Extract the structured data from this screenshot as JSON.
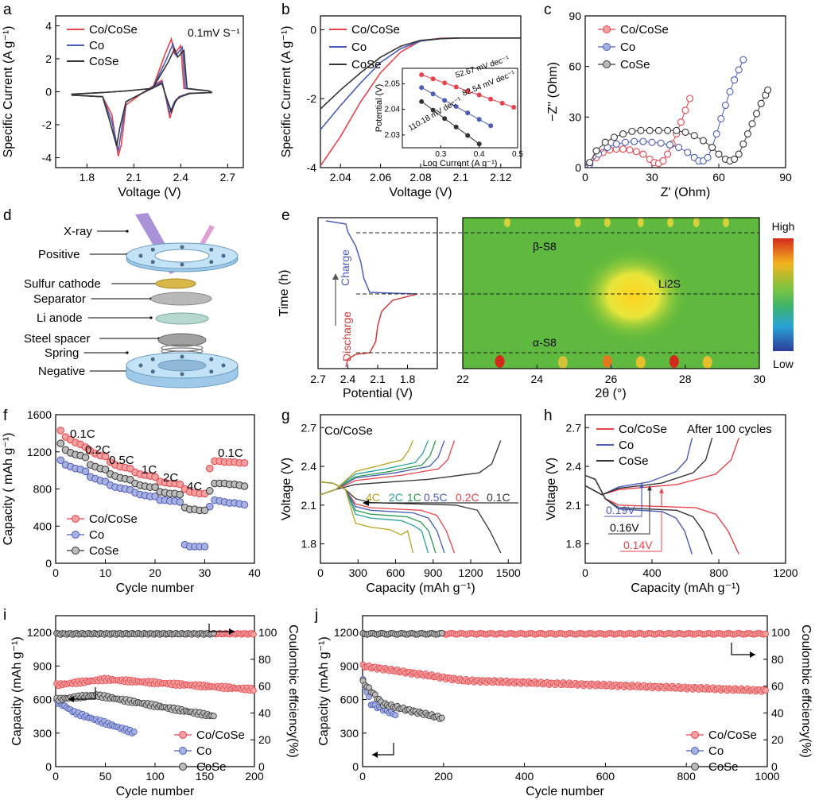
{
  "figure": {
    "panel_labels": [
      "a",
      "b",
      "c",
      "d",
      "e",
      "f",
      "g",
      "h",
      "i",
      "j"
    ],
    "colors": {
      "cocose": "#e8424a",
      "co": "#4a5bb8",
      "cose": "#333333",
      "cocose_fill": "#f4a0a0",
      "co_fill": "#a8b0e0",
      "cose_fill": "#bbbbbb"
    }
  },
  "chart_data": [
    {
      "panel": "a",
      "type": "line",
      "xlabel": "Voltage (V)",
      "ylabel": "Specific Current (A g⁻¹)",
      "xlim": [
        1.6,
        2.8
      ],
      "ylim": [
        -4.6,
        4.6
      ],
      "xticks": [
        1.8,
        2.1,
        2.4,
        2.7
      ],
      "yticks": [
        -4,
        -2,
        0,
        2,
        4
      ],
      "annotation": "0.1mV S⁻¹",
      "legend": [
        "Co/CoSe",
        "Co",
        "CoSe"
      ],
      "series": [
        {
          "name": "Co/CoSe",
          "x": [
            1.7,
            1.9,
            1.96,
            2.0,
            2.02,
            2.05,
            2.15,
            2.28,
            2.31,
            2.33,
            2.36,
            2.39,
            2.45,
            2.6,
            2.58,
            2.42,
            2.4,
            2.36,
            2.34,
            2.3,
            2.22,
            2.05,
            1.9,
            1.7
          ],
          "y": [
            -0.2,
            -0.3,
            -1.4,
            -3.9,
            -3.2,
            -0.8,
            -0.1,
            0.7,
            -0.6,
            -1.6,
            -0.7,
            -0.3,
            -0.1,
            -0.05,
            0.05,
            0.2,
            2.8,
            2.3,
            3.2,
            2.3,
            0.2,
            0.05,
            -0.05,
            -0.15
          ]
        },
        {
          "name": "Co",
          "x": [
            1.7,
            1.9,
            1.96,
            2.0,
            2.02,
            2.05,
            2.15,
            2.28,
            2.31,
            2.33,
            2.36,
            2.39,
            2.45,
            2.6,
            2.58,
            2.43,
            2.41,
            2.37,
            2.35,
            2.31,
            2.22,
            2.05,
            1.9,
            1.7
          ],
          "y": [
            -0.2,
            -0.3,
            -1.8,
            -3.6,
            -2.4,
            -0.6,
            -0.1,
            0.6,
            -0.5,
            -1.3,
            -0.6,
            -0.3,
            -0.1,
            -0.05,
            0.05,
            0.2,
            2.7,
            2.2,
            2.9,
            2.0,
            0.2,
            0.05,
            -0.05,
            -0.15
          ]
        },
        {
          "name": "CoSe",
          "x": [
            1.7,
            1.9,
            1.95,
            1.99,
            2.01,
            2.05,
            2.15,
            2.28,
            2.31,
            2.34,
            2.37,
            2.4,
            2.46,
            2.6,
            2.58,
            2.44,
            2.42,
            2.38,
            2.36,
            2.32,
            2.22,
            2.05,
            1.9,
            1.7
          ],
          "y": [
            -0.2,
            -0.3,
            -1.9,
            -3.3,
            -2.2,
            -0.6,
            -0.1,
            0.5,
            -0.4,
            -1.2,
            -0.5,
            -0.3,
            -0.1,
            -0.05,
            0.05,
            0.2,
            2.5,
            2.1,
            2.6,
            1.8,
            0.2,
            0.05,
            -0.05,
            -0.15
          ]
        }
      ]
    },
    {
      "panel": "b",
      "type": "line",
      "xlabel": "Voltage (V)",
      "ylabel": "Specific Current (A g⁻¹)",
      "xlim": [
        2.03,
        2.13
      ],
      "ylim": [
        -4.0,
        0.4
      ],
      "xticks": [
        2.04,
        2.06,
        2.08,
        2.1,
        2.12
      ],
      "yticks": [
        -4,
        -2,
        0
      ],
      "legend": [
        "Co/CoSe",
        "Co",
        "CoSe"
      ],
      "series": [
        {
          "name": "Co/CoSe",
          "x": [
            2.03,
            2.04,
            2.05,
            2.06,
            2.07,
            2.08,
            2.09,
            2.1,
            2.11,
            2.13
          ],
          "y": [
            -3.95,
            -3.1,
            -2.1,
            -1.25,
            -0.65,
            -0.32,
            -0.25,
            -0.24,
            -0.24,
            -0.24
          ]
        },
        {
          "name": "Co",
          "x": [
            2.03,
            2.04,
            2.05,
            2.06,
            2.07,
            2.08,
            2.09,
            2.1,
            2.11,
            2.13
          ],
          "y": [
            -2.9,
            -2.2,
            -1.55,
            -0.95,
            -0.55,
            -0.33,
            -0.26,
            -0.24,
            -0.24,
            -0.24
          ]
        },
        {
          "name": "CoSe",
          "x": [
            2.03,
            2.04,
            2.05,
            2.06,
            2.07,
            2.08,
            2.09,
            2.1,
            2.11,
            2.13
          ],
          "y": [
            -2.3,
            -1.75,
            -1.25,
            -0.8,
            -0.48,
            -0.31,
            -0.26,
            -0.24,
            -0.24,
            -0.24
          ]
        }
      ],
      "inset": {
        "xlabel": "Log Current (A g⁻¹)",
        "ylabel": "Potential (V)",
        "xlim": [
          0.2,
          0.5
        ],
        "ylim": [
          2.025,
          2.056
        ],
        "xticks": [
          0.3,
          0.4,
          0.5
        ],
        "yticks": [
          2.03,
          2.04,
          2.05
        ],
        "labels": [
          "52.67 mV dec⁻¹",
          "82.54 mV dec⁻¹",
          "110.18 mV dec⁻¹"
        ],
        "series": [
          {
            "name": "Co/CoSe",
            "x": [
              0.25,
              0.28,
              0.31,
              0.34,
              0.37,
              0.4,
              0.43,
              0.46,
              0.49
            ],
            "y": [
              2.0535,
              2.0519,
              2.0503,
              2.0487,
              2.0471,
              2.0456,
              2.044,
              2.0424,
              2.0408
            ]
          },
          {
            "name": "Co",
            "x": [
              0.25,
              0.28,
              0.31,
              0.34,
              0.37,
              0.4,
              0.43
            ],
            "y": [
              2.0485,
              2.046,
              2.0435,
              2.0411,
              2.0386,
              2.0361,
              2.0336
            ]
          },
          {
            "name": "CoSe",
            "x": [
              0.25,
              0.28,
              0.31,
              0.34,
              0.37,
              0.4
            ],
            "y": [
              2.043,
              2.0397,
              2.0364,
              2.0331,
              2.0298,
              2.0265
            ]
          }
        ]
      }
    },
    {
      "panel": "c",
      "type": "scatter",
      "xlabel": "Z' (Ohm)",
      "ylabel": "−Z'' (Ohm)",
      "xlim": [
        0,
        90
      ],
      "ylim": [
        0,
        90
      ],
      "xticks": [
        0,
        30,
        60,
        90
      ],
      "yticks": [
        0,
        30,
        60,
        90
      ],
      "legend": [
        "Co/CoSe",
        "Co",
        "CoSe"
      ],
      "series": [
        {
          "name": "Co/CoSe",
          "x": [
            2,
            5,
            8,
            11,
            14,
            17,
            20,
            23,
            26,
            29,
            31,
            33,
            35,
            37,
            39,
            41,
            43,
            45,
            47
          ],
          "y": [
            2,
            6,
            9,
            10.5,
            11,
            11,
            10.5,
            9.5,
            8,
            5,
            3,
            2.5,
            4,
            8,
            14,
            20,
            27,
            34,
            41
          ]
        },
        {
          "name": "Co",
          "x": [
            2,
            6,
            10,
            14,
            18,
            22,
            26,
            30,
            34,
            38,
            42,
            46,
            49,
            51,
            53,
            55,
            57,
            59,
            61,
            63,
            65,
            67,
            69,
            71
          ],
          "y": [
            2,
            8,
            12,
            14,
            15,
            15.5,
            15.5,
            15,
            14.5,
            13.5,
            12,
            9,
            6,
            4,
            4,
            6,
            12,
            20,
            29,
            37,
            45,
            52,
            58,
            64
          ]
        },
        {
          "name": "CoSe",
          "x": [
            2,
            5,
            9,
            13,
            17,
            21,
            25,
            29,
            33,
            37,
            41,
            45,
            49,
            53,
            57,
            60,
            63,
            65,
            67,
            69,
            71,
            73,
            75,
            77,
            79,
            81,
            82
          ],
          "y": [
            3,
            10,
            15,
            18,
            20,
            21.5,
            22,
            22,
            22,
            22,
            22,
            21,
            19,
            16,
            12,
            8,
            5,
            4,
            5,
            8,
            14,
            20,
            26,
            32,
            38,
            43,
            46
          ]
        }
      ]
    },
    {
      "panel": "e",
      "type": "heatmap",
      "left_xlabel": "Potential (V)",
      "left_ylabel": "Time (h)",
      "left_xticks": [
        2.7,
        2.4,
        2.1,
        1.8
      ],
      "left_xlim": [
        2.7,
        1.5
      ],
      "xlabel": "2θ (°)",
      "xlim": [
        22,
        30
      ],
      "xticks": [
        22,
        24,
        26,
        28,
        30
      ],
      "colorbar": [
        "High",
        "Low"
      ],
      "annotations": [
        "β-S8",
        "Li2S",
        "α-S8"
      ],
      "charge_label": "Charge",
      "discharge_label": "Discharge"
    },
    {
      "panel": "f",
      "type": "scatter",
      "xlabel": "Cycle number",
      "ylabel": "Capacity ( mAh g⁻¹)",
      "xlim": [
        0,
        40
      ],
      "ylim": [
        0,
        1600
      ],
      "xticks": [
        0,
        10,
        20,
        30,
        40
      ],
      "yticks": [
        0,
        400,
        800,
        1200,
        1600
      ],
      "rate_labels": [
        "0.1C",
        "0.2C",
        "0.5C",
        "1C",
        "2C",
        "4C",
        "0.1C"
      ],
      "legend": [
        "Co/CoSe",
        "Co",
        "CoSe"
      ],
      "series": [
        {
          "name": "Co/CoSe",
          "values": [
            1430,
            1360,
            1330,
            1300,
            1280,
            1250,
            1210,
            1180,
            1160,
            1150,
            1090,
            1060,
            1040,
            1030,
            1020,
            980,
            960,
            950,
            940,
            930,
            880,
            870,
            860,
            860,
            850,
            800,
            770,
            760,
            750,
            750,
            1020,
            1100,
            1100,
            1090,
            1090,
            1090,
            1080,
            1080
          ]
        },
        {
          "name": "Co",
          "values": [
            1110,
            1060,
            1040,
            1020,
            1010,
            990,
            930,
            910,
            890,
            880,
            840,
            820,
            810,
            800,
            790,
            760,
            740,
            730,
            720,
            720,
            680,
            680,
            670,
            670,
            660,
            200,
            180,
            180,
            180,
            180,
            610,
            680,
            670,
            660,
            650,
            650,
            640,
            630
          ]
        },
        {
          "name": "CoSe",
          "values": [
            1290,
            1220,
            1190,
            1170,
            1160,
            1140,
            1060,
            1040,
            1020,
            1010,
            960,
            940,
            920,
            910,
            900,
            860,
            840,
            830,
            820,
            820,
            770,
            760,
            750,
            750,
            740,
            600,
            580,
            580,
            570,
            570,
            780,
            860,
            860,
            860,
            850,
            850,
            840,
            830
          ]
        }
      ]
    },
    {
      "panel": "g",
      "type": "line",
      "xlabel": "Capacity (mAh g⁻¹)",
      "ylabel": "Voltage (V)",
      "xlim": [
        0,
        1600
      ],
      "ylim": [
        1.65,
        2.8
      ],
      "xticks": [
        0,
        300,
        600,
        900,
        1200,
        1500
      ],
      "yticks": [
        1.8,
        2.1,
        2.4,
        2.7
      ],
      "title": "Co/CoSe",
      "rate_labels": [
        "4C",
        "2C",
        "1C",
        "0.5C",
        "0.2C",
        "0.1C"
      ],
      "series": [
        {
          "name": "0.1C",
          "cap": 1440
        },
        {
          "name": "0.2C",
          "cap": 1070
        },
        {
          "name": "0.5C",
          "cap": 990
        },
        {
          "name": "1C",
          "cap": 920
        },
        {
          "name": "2C",
          "cap": 860
        },
        {
          "name": "4C",
          "cap": 740
        }
      ]
    },
    {
      "panel": "h",
      "type": "line",
      "xlabel": "Capacity (mAh g⁻¹)",
      "ylabel": "Voltage (V)",
      "xlim": [
        0,
        1200
      ],
      "ylim": [
        1.65,
        2.8
      ],
      "xticks": [
        0,
        400,
        800,
        1200
      ],
      "yticks": [
        1.8,
        2.1,
        2.4,
        2.7
      ],
      "annotation": "After 100 cycles",
      "legend": [
        "Co/CoSe",
        "Co",
        "CoSe"
      ],
      "polarization": [
        "0.19V",
        "0.16V",
        "0.14V"
      ],
      "series": [
        {
          "name": "Co/CoSe",
          "cap": 920
        },
        {
          "name": "Co",
          "cap": 640
        },
        {
          "name": "CoSe",
          "cap": 760
        }
      ]
    },
    {
      "panel": "i",
      "type": "scatter",
      "xlabel": "Cycle number",
      "ylabel": "Capacity (mAh g⁻¹)",
      "y2label": "Coulombic effciency(%)",
      "xlim": [
        0,
        200
      ],
      "ylim": [
        0,
        1350
      ],
      "y2lim": [
        0,
        112.5
      ],
      "xticks": [
        0,
        50,
        100,
        150,
        200
      ],
      "yticks": [
        0,
        300,
        600,
        900,
        1200
      ],
      "y2ticks": [
        0,
        20,
        40,
        60,
        80,
        100
      ],
      "legend": [
        "Co/CoSe",
        "Co",
        "CoSe"
      ],
      "series": [
        {
          "name": "Co/CoSe",
          "last": 200,
          "start": 730,
          "mid": 780,
          "end": 690
        },
        {
          "name": "Co",
          "last": 80,
          "start": 590,
          "mid": 480,
          "end": 300
        },
        {
          "name": "CoSe",
          "last": 160,
          "start": 600,
          "mid": 640,
          "end": 450
        }
      ]
    },
    {
      "panel": "j",
      "type": "scatter",
      "xlabel": "Cycle number",
      "ylabel": "Capacity (mAh g⁻¹)",
      "y2label": "Coulombic effciency(%)",
      "xlim": [
        0,
        1000
      ],
      "ylim": [
        0,
        1350
      ],
      "y2lim": [
        0,
        112.5
      ],
      "xticks": [
        0,
        200,
        400,
        600,
        800,
        1000
      ],
      "yticks": [
        0,
        300,
        600,
        900,
        1200
      ],
      "y2ticks": [
        0,
        20,
        40,
        60,
        80,
        100
      ],
      "legend": [
        "Co/CoSe",
        "Co",
        "CoSe"
      ],
      "series": [
        {
          "name": "Co/CoSe",
          "last": 1000,
          "start": 900,
          "mid": 770,
          "end": 680
        },
        {
          "name": "Co",
          "last": 85,
          "start": 780,
          "mid": 560,
          "end": 460
        },
        {
          "name": "CoSe",
          "last": 200,
          "start": 760,
          "mid": 560,
          "end": 430
        }
      ]
    }
  ],
  "diagram_d": {
    "labels": [
      "X-ray",
      "Positive",
      "Sulfur cathode",
      "Separator",
      "Li anode",
      "Steel spacer",
      "Spring",
      "Negative"
    ]
  }
}
